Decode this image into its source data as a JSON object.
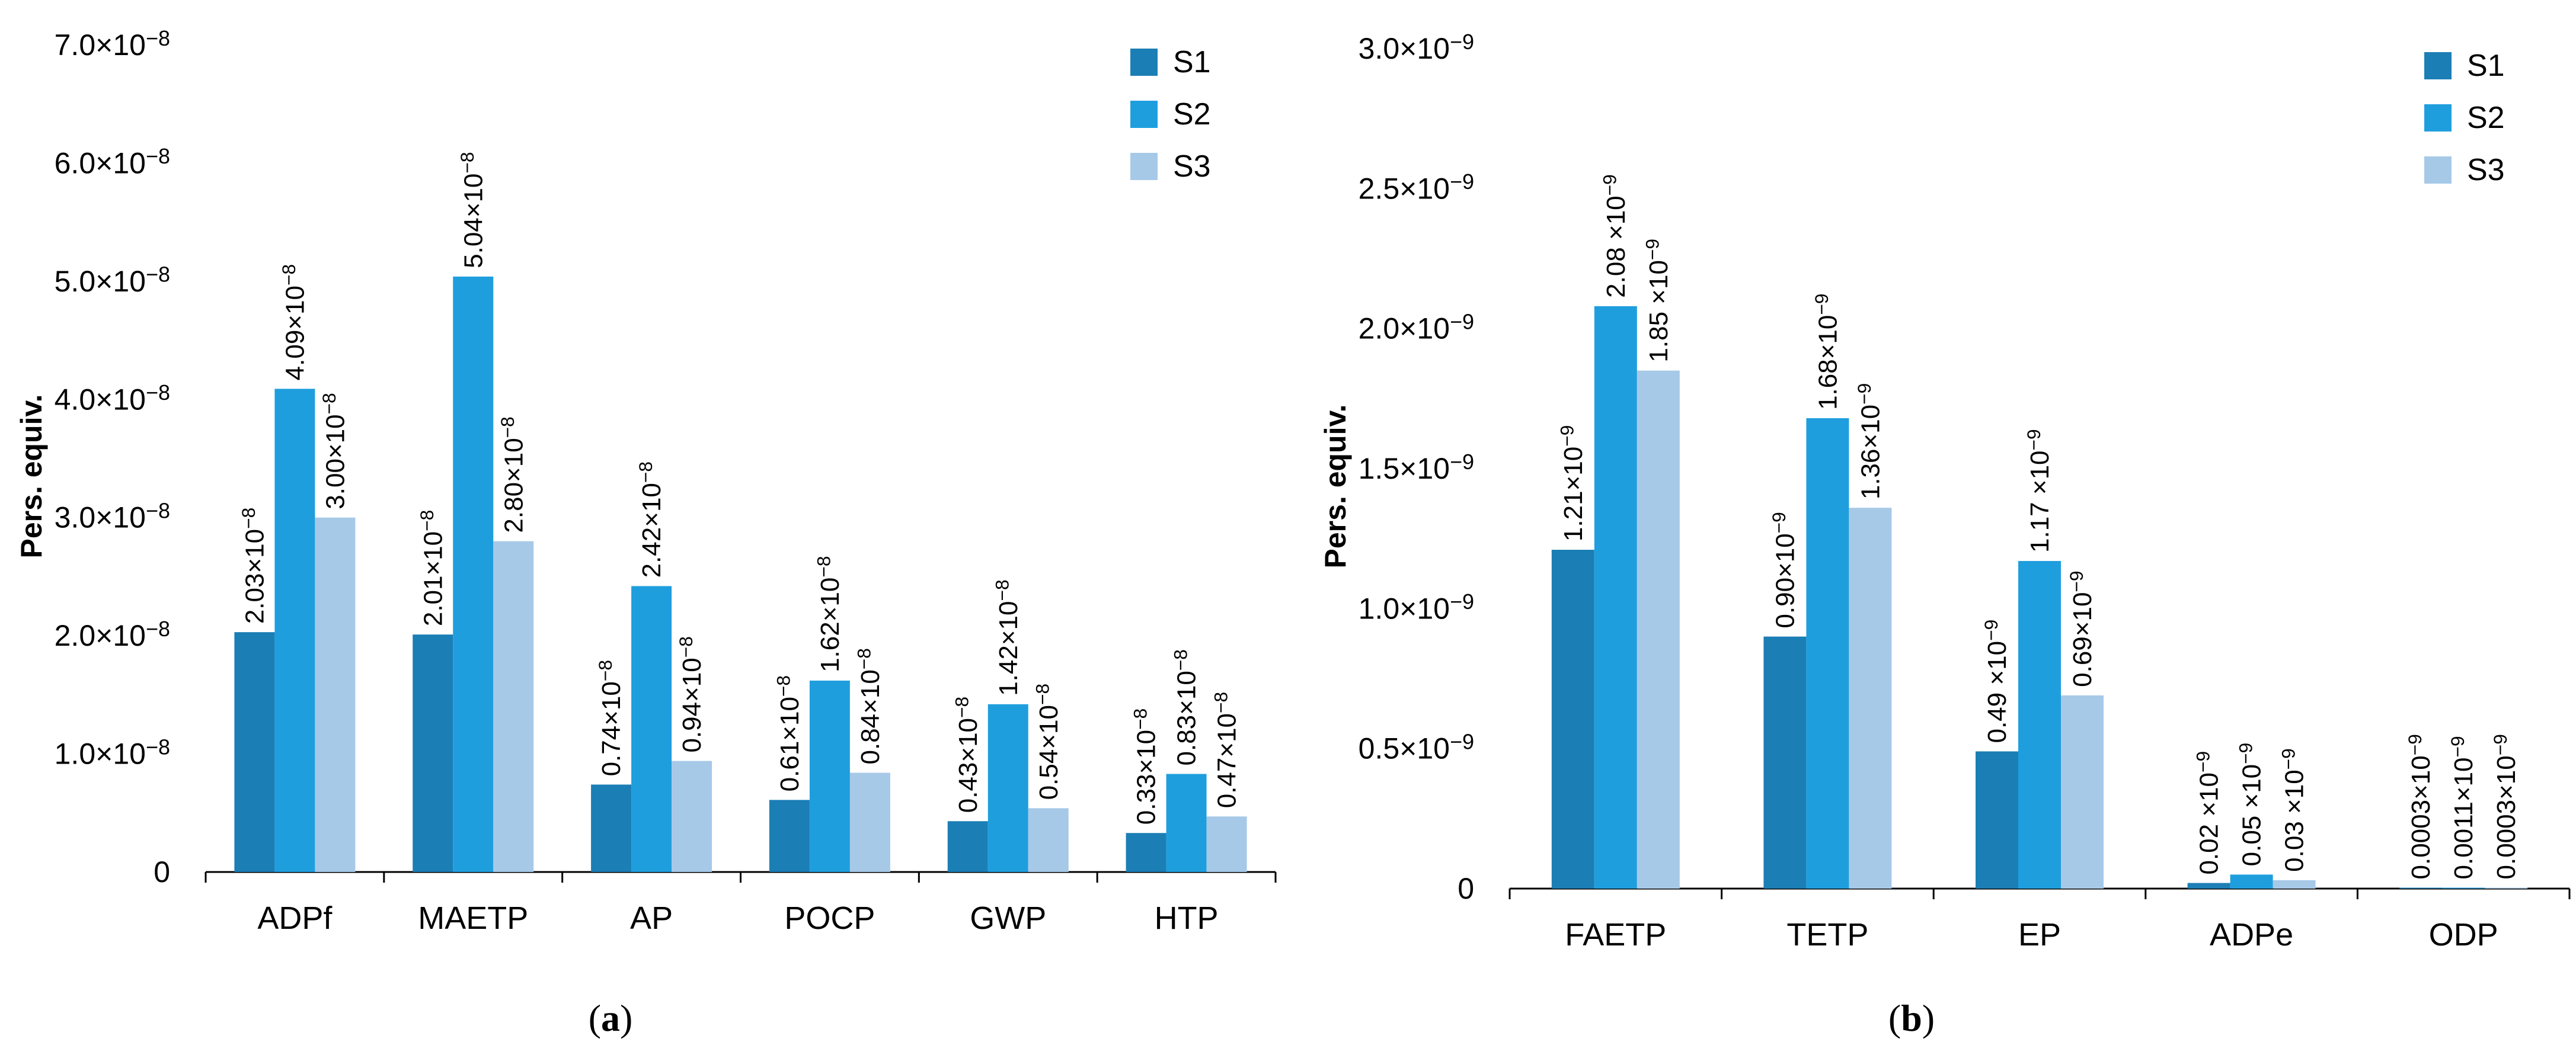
{
  "colors": {
    "S1": "#1b7eb5",
    "S2": "#1f9ede",
    "S3": "#a7c9e8"
  },
  "chart_data": [
    {
      "type": "bar",
      "panel": "a",
      "caption": "(a)",
      "ylabel": "Pers. equiv.",
      "ylim": [
        0,
        7e-08
      ],
      "yticks": [
        0,
        1e-08,
        2e-08,
        3e-08,
        4e-08,
        5e-08,
        6e-08,
        7e-08
      ],
      "ytick_labels": [
        "0",
        "1.0×10−8",
        "2.0×10−8",
        "3.0×10−8",
        "4.0×10−8",
        "5.0×10−8",
        "6.0×10−8",
        "7.0×10−8"
      ],
      "legend": "top-right",
      "categories": [
        "ADPf",
        "MAETP",
        "AP",
        "POCP",
        "GWP",
        "HTP"
      ],
      "series": [
        {
          "name": "S1",
          "values": [
            2.03e-08,
            2.01e-08,
            7.4e-09,
            6.1e-09,
            4.3e-09,
            3.3e-09
          ],
          "labels": [
            "2.03×10−8",
            "2.01×10−8",
            "0.74×10−8",
            "0.61×10−8",
            "0.43×10−8",
            "0.33×10−8"
          ]
        },
        {
          "name": "S2",
          "values": [
            4.09e-08,
            5.04e-08,
            2.42e-08,
            1.62e-08,
            1.42e-08,
            8.3e-09
          ],
          "labels": [
            "4.09×10−8",
            "5.04×10−8",
            "2.42×10−8",
            "1.62×10−8",
            "1.42×10−8",
            "0.83×10−8"
          ]
        },
        {
          "name": "S3",
          "values": [
            3e-08,
            2.8e-08,
            9.4e-09,
            8.4e-09,
            5.4e-09,
            4.7e-09
          ],
          "labels": [
            "3.00×10−8",
            "2.80×10−8",
            "0.94×10−8",
            "0.84×10−8",
            "0.54×10−8",
            "0.47×10−8"
          ]
        }
      ]
    },
    {
      "type": "bar",
      "panel": "b",
      "caption": "(b)",
      "ylabel": "Pers. equiv.",
      "ylim": [
        0,
        3e-09
      ],
      "yticks": [
        0,
        5e-10,
        1e-09,
        1.5e-09,
        2e-09,
        2.5e-09,
        3e-09
      ],
      "ytick_labels": [
        "0",
        "0.5×10−9",
        "1.0×10−9",
        "1.5×10−9",
        "2.0×10−9",
        "2.5×10−9",
        "3.0×10−9"
      ],
      "legend": "top-right",
      "categories": [
        "FAETP",
        "TETP",
        "EP",
        "ADPe",
        "ODP"
      ],
      "series": [
        {
          "name": "S1",
          "values": [
            1.21e-09,
            9e-10,
            4.9e-10,
            2e-11,
            3e-13
          ],
          "labels": [
            "1.21×10−9",
            "0.90×10−9",
            "0.49 ×10−9",
            "0.02 ×10−9",
            "0.0003×10−9"
          ]
        },
        {
          "name": "S2",
          "values": [
            2.08e-09,
            1.68e-09,
            1.17e-09,
            5e-11,
            1.1e-12
          ],
          "labels": [
            "2.08 ×10−9",
            "1.68×10−9",
            "1.17 ×10−9",
            "0.05 ×10−9",
            "0.0011×10−9"
          ]
        },
        {
          "name": "S3",
          "values": [
            1.85e-09,
            1.36e-09,
            6.9e-10,
            3e-11,
            3e-13
          ],
          "labels": [
            "1.85 ×10−9",
            "1.36×10−9",
            "0.69×10−9",
            "0.03 ×10−9",
            "0.0003×10−9"
          ]
        }
      ]
    }
  ]
}
